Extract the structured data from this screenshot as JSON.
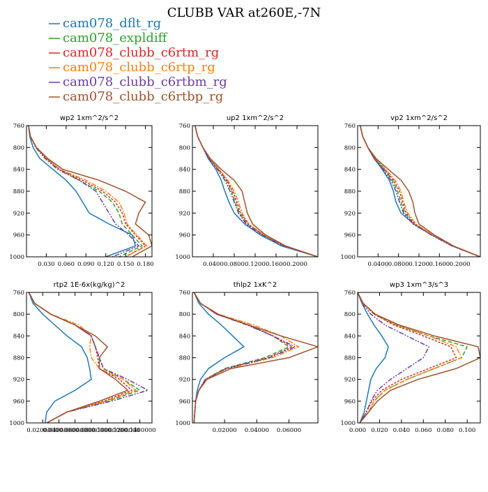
{
  "title": "CLUBB VAR at260E,-7N",
  "colors": {
    "dflt": "#1f77b4",
    "expldiff": "#2ca02c",
    "c6rtm": "#d62728",
    "c6rtp": "#ff7f0e",
    "c6rtbm": "#6a3d9a",
    "c6rtbp": "#a0522d"
  },
  "legend": [
    {
      "key": "dflt",
      "label": "cam078_dflt_rg",
      "dash": ""
    },
    {
      "key": "expldiff",
      "label": "cam078_expldiff",
      "dash": "6,3"
    },
    {
      "key": "c6rtm",
      "label": "cam078_clubb_c6rtm_rg",
      "dash": "3,2"
    },
    {
      "key": "c6rtp",
      "label": "cam078_clubb_c6rtp_rg",
      "dash": "7,2,2,2"
    },
    {
      "key": "c6rtbm",
      "label": "cam078_clubb_c6rtbm_rg",
      "dash": "7,2,2,2,2,2"
    },
    {
      "key": "c6rtbp",
      "label": "cam078_clubb_c6rtbp_rg",
      "dash": ""
    }
  ],
  "chart_data": [
    {
      "type": "line",
      "title": "wp2  1xm^2/s^2",
      "xlim": [
        0.0,
        0.19
      ],
      "ylim": [
        760,
        1000
      ],
      "y_inverted": true,
      "xticks": [
        0.03,
        0.06,
        0.09,
        0.12,
        0.15,
        0.18
      ],
      "xtick_labels": [
        "0.030",
        "0.060",
        "0.090",
        "0.120",
        "0.150",
        "0.180"
      ],
      "yticks": [
        760,
        800,
        840,
        880,
        920,
        960,
        1000
      ],
      "levels": [
        760,
        780,
        800,
        820,
        840,
        860,
        880,
        900,
        920,
        940,
        960,
        980,
        1000
      ],
      "series": [
        {
          "key": "dflt",
          "values": [
            0.003,
            0.005,
            0.01,
            0.02,
            0.04,
            0.06,
            0.075,
            0.085,
            0.095,
            0.125,
            0.16,
            0.165,
            0.12
          ]
        },
        {
          "key": "expldiff",
          "values": [
            0.003,
            0.006,
            0.015,
            0.03,
            0.05,
            0.08,
            0.11,
            0.13,
            0.14,
            0.145,
            0.16,
            0.175,
            0.14
          ]
        },
        {
          "key": "c6rtm",
          "values": [
            0.003,
            0.006,
            0.015,
            0.03,
            0.05,
            0.085,
            0.115,
            0.135,
            0.145,
            0.15,
            0.165,
            0.18,
            0.15
          ]
        },
        {
          "key": "c6rtp",
          "values": [
            0.003,
            0.006,
            0.015,
            0.03,
            0.05,
            0.09,
            0.12,
            0.14,
            0.148,
            0.152,
            0.167,
            0.182,
            0.15
          ]
        },
        {
          "key": "c6rtbm",
          "values": [
            0.003,
            0.006,
            0.014,
            0.028,
            0.047,
            0.08,
            0.105,
            0.115,
            0.125,
            0.135,
            0.155,
            0.17,
            0.13
          ]
        },
        {
          "key": "c6rtbp",
          "values": [
            0.003,
            0.006,
            0.015,
            0.032,
            0.055,
            0.11,
            0.15,
            0.18,
            0.17,
            0.165,
            0.185,
            0.19,
            0.16
          ]
        }
      ]
    },
    {
      "type": "line",
      "title": "up2  1xm^2/s^2",
      "xlim": [
        0.0,
        0.24
      ],
      "ylim": [
        760,
        1000
      ],
      "y_inverted": true,
      "xticks": [
        0.04,
        0.08,
        0.12,
        0.16,
        0.2
      ],
      "xtick_labels": [
        "0.0400",
        "0.0800",
        "0.1200",
        "0.1600",
        "0.2000"
      ],
      "yticks": [
        760,
        800,
        840,
        880,
        920,
        960,
        1000
      ],
      "levels": [
        760,
        780,
        800,
        820,
        840,
        860,
        880,
        900,
        920,
        940,
        960,
        980,
        1000
      ],
      "series": [
        {
          "key": "dflt",
          "values": [
            0.005,
            0.01,
            0.02,
            0.03,
            0.045,
            0.055,
            0.062,
            0.07,
            0.08,
            0.1,
            0.13,
            0.17,
            0.24
          ]
        },
        {
          "key": "expldiff",
          "values": [
            0.005,
            0.01,
            0.02,
            0.032,
            0.05,
            0.065,
            0.075,
            0.082,
            0.09,
            0.105,
            0.135,
            0.175,
            0.24
          ]
        },
        {
          "key": "c6rtm",
          "values": [
            0.005,
            0.01,
            0.02,
            0.032,
            0.05,
            0.066,
            0.077,
            0.085,
            0.092,
            0.107,
            0.136,
            0.176,
            0.24
          ]
        },
        {
          "key": "c6rtp",
          "values": [
            0.005,
            0.01,
            0.02,
            0.033,
            0.051,
            0.068,
            0.08,
            0.088,
            0.095,
            0.108,
            0.137,
            0.177,
            0.24
          ]
        },
        {
          "key": "c6rtbm",
          "values": [
            0.005,
            0.01,
            0.02,
            0.031,
            0.048,
            0.062,
            0.072,
            0.08,
            0.088,
            0.103,
            0.133,
            0.174,
            0.24
          ]
        },
        {
          "key": "c6rtbp",
          "values": [
            0.005,
            0.01,
            0.02,
            0.034,
            0.055,
            0.08,
            0.095,
            0.1,
            0.105,
            0.115,
            0.14,
            0.178,
            0.24
          ]
        }
      ]
    },
    {
      "type": "line",
      "title": "vp2  1xm^2/s^2",
      "xlim": [
        0.0,
        0.24
      ],
      "ylim": [
        760,
        1000
      ],
      "y_inverted": true,
      "xticks": [
        0.04,
        0.08,
        0.12,
        0.16,
        0.2
      ],
      "xtick_labels": [
        "0.0400",
        "0.0800",
        "0.1200",
        "0.1600",
        "0.2000"
      ],
      "yticks": [
        760,
        800,
        840,
        880,
        920,
        960,
        1000
      ],
      "levels": [
        760,
        780,
        800,
        820,
        840,
        860,
        880,
        900,
        920,
        940,
        960,
        980,
        1000
      ],
      "series": [
        {
          "key": "dflt",
          "values": [
            0.005,
            0.01,
            0.02,
            0.032,
            0.048,
            0.062,
            0.07,
            0.075,
            0.085,
            0.11,
            0.145,
            0.185,
            0.24
          ]
        },
        {
          "key": "expldiff",
          "values": [
            0.005,
            0.01,
            0.02,
            0.033,
            0.052,
            0.068,
            0.078,
            0.085,
            0.092,
            0.11,
            0.145,
            0.185,
            0.24
          ]
        },
        {
          "key": "c6rtm",
          "values": [
            0.005,
            0.01,
            0.02,
            0.034,
            0.053,
            0.07,
            0.082,
            0.088,
            0.095,
            0.112,
            0.146,
            0.186,
            0.24
          ]
        },
        {
          "key": "c6rtp",
          "values": [
            0.005,
            0.01,
            0.02,
            0.035,
            0.055,
            0.073,
            0.085,
            0.09,
            0.098,
            0.114,
            0.147,
            0.186,
            0.24
          ]
        },
        {
          "key": "c6rtbm",
          "values": [
            0.005,
            0.01,
            0.02,
            0.032,
            0.05,
            0.065,
            0.075,
            0.082,
            0.09,
            0.108,
            0.144,
            0.184,
            0.24
          ]
        },
        {
          "key": "c6rtbp",
          "values": [
            0.005,
            0.01,
            0.02,
            0.036,
            0.06,
            0.085,
            0.1,
            0.108,
            0.112,
            0.12,
            0.15,
            0.187,
            0.24
          ]
        }
      ]
    },
    {
      "type": "line",
      "title": "rtp2  1E-6x(kg/kg)^2",
      "xlim": [
        0.0,
        0.155
      ],
      "ylim": [
        760,
        1000
      ],
      "y_inverted": true,
      "xticks": [
        0.02,
        0.04,
        0.06,
        0.08,
        0.1,
        0.12,
        0.14
      ],
      "xtick_labels": [
        "0.0200000",
        "0.0400000",
        "0.0600000",
        "0.0800000",
        "0.1000000",
        "0.1200000",
        "0.1400000"
      ],
      "yticks": [
        760,
        800,
        840,
        880,
        920,
        960,
        1000
      ],
      "levels": [
        760,
        780,
        800,
        820,
        840,
        860,
        880,
        900,
        920,
        940,
        960,
        980,
        1000
      ],
      "series": [
        {
          "key": "dflt",
          "values": [
            0.003,
            0.008,
            0.02,
            0.035,
            0.05,
            0.068,
            0.075,
            0.078,
            0.08,
            0.06,
            0.035,
            0.025,
            0.023
          ]
        },
        {
          "key": "expldiff",
          "values": [
            0.003,
            0.01,
            0.03,
            0.06,
            0.08,
            0.085,
            0.09,
            0.095,
            0.12,
            0.14,
            0.1,
            0.05,
            0.025
          ]
        },
        {
          "key": "c6rtm",
          "values": [
            0.003,
            0.01,
            0.03,
            0.06,
            0.08,
            0.085,
            0.088,
            0.09,
            0.115,
            0.13,
            0.095,
            0.05,
            0.025
          ]
        },
        {
          "key": "c6rtp",
          "values": [
            0.003,
            0.01,
            0.03,
            0.065,
            0.08,
            0.078,
            0.08,
            0.09,
            0.12,
            0.135,
            0.098,
            0.05,
            0.025
          ]
        },
        {
          "key": "c6rtbm",
          "values": [
            0.003,
            0.01,
            0.03,
            0.06,
            0.08,
            0.085,
            0.09,
            0.095,
            0.125,
            0.15,
            0.105,
            0.05,
            0.025
          ]
        },
        {
          "key": "c6rtbp",
          "values": [
            0.003,
            0.01,
            0.03,
            0.06,
            0.085,
            0.1,
            0.09,
            0.09,
            0.11,
            0.125,
            0.09,
            0.05,
            0.025
          ]
        }
      ]
    },
    {
      "type": "line",
      "title": "thlp2  1xK^2",
      "xlim": [
        0.0,
        0.078
      ],
      "ylim": [
        760,
        1000
      ],
      "y_inverted": true,
      "xticks": [
        0.02,
        0.04,
        0.06
      ],
      "xtick_labels": [
        "0.02000",
        "0.04000",
        "0.06000"
      ],
      "yticks": [
        760,
        800,
        840,
        880,
        920,
        960,
        1000
      ],
      "levels": [
        760,
        780,
        800,
        820,
        840,
        860,
        880,
        900,
        920,
        940,
        960,
        980,
        1000
      ],
      "series": [
        {
          "key": "dflt",
          "values": [
            0.001,
            0.004,
            0.01,
            0.018,
            0.025,
            0.032,
            0.02,
            0.01,
            0.005,
            0.003,
            0.002,
            0.0015,
            0.001
          ]
        },
        {
          "key": "expldiff",
          "values": [
            0.001,
            0.005,
            0.015,
            0.035,
            0.05,
            0.06,
            0.045,
            0.02,
            0.008,
            0.004,
            0.002,
            0.0015,
            0.001
          ]
        },
        {
          "key": "c6rtm",
          "values": [
            0.001,
            0.005,
            0.015,
            0.035,
            0.05,
            0.062,
            0.047,
            0.021,
            0.008,
            0.004,
            0.002,
            0.0015,
            0.001
          ]
        },
        {
          "key": "c6rtp",
          "values": [
            0.001,
            0.005,
            0.016,
            0.038,
            0.055,
            0.066,
            0.05,
            0.022,
            0.008,
            0.004,
            0.002,
            0.0015,
            0.001
          ]
        },
        {
          "key": "c6rtbm",
          "values": [
            0.001,
            0.005,
            0.015,
            0.034,
            0.05,
            0.064,
            0.048,
            0.021,
            0.008,
            0.004,
            0.002,
            0.0015,
            0.001
          ]
        },
        {
          "key": "c6rtbp",
          "values": [
            0.001,
            0.005,
            0.016,
            0.035,
            0.055,
            0.078,
            0.06,
            0.024,
            0.009,
            0.004,
            0.002,
            0.0015,
            0.001
          ]
        }
      ]
    },
    {
      "type": "line",
      "title": "wp3  1xm^3/s^3",
      "xlim": [
        0.0,
        0.112
      ],
      "ylim": [
        760,
        1000
      ],
      "y_inverted": true,
      "xticks": [
        0.0,
        0.02,
        0.04,
        0.06,
        0.08,
        0.1
      ],
      "xtick_labels": [
        "0.000",
        "0.020",
        "0.040",
        "0.060",
        "0.080",
        "0.100"
      ],
      "yticks": [
        760,
        800,
        840,
        880,
        920,
        960,
        1000
      ],
      "levels": [
        760,
        780,
        800,
        820,
        840,
        860,
        880,
        900,
        920,
        940,
        960,
        980,
        1000
      ],
      "series": [
        {
          "key": "dflt",
          "values": [
            0.0,
            0.004,
            0.009,
            0.015,
            0.022,
            0.028,
            0.025,
            0.017,
            0.012,
            0.01,
            0.008,
            0.006,
            0.002
          ]
        },
        {
          "key": "expldiff",
          "values": [
            0.0,
            0.005,
            0.015,
            0.035,
            0.065,
            0.1,
            0.095,
            0.07,
            0.045,
            0.025,
            0.015,
            0.01,
            0.002
          ]
        },
        {
          "key": "c6rtm",
          "values": [
            0.0,
            0.005,
            0.015,
            0.033,
            0.06,
            0.085,
            0.09,
            0.065,
            0.04,
            0.022,
            0.013,
            0.008,
            0.002
          ]
        },
        {
          "key": "c6rtp",
          "values": [
            0.0,
            0.005,
            0.016,
            0.036,
            0.065,
            0.09,
            0.095,
            0.07,
            0.045,
            0.025,
            0.015,
            0.01,
            0.002
          ]
        },
        {
          "key": "c6rtbm",
          "values": [
            0.0,
            0.004,
            0.012,
            0.025,
            0.045,
            0.065,
            0.06,
            0.045,
            0.03,
            0.018,
            0.012,
            0.008,
            0.002
          ]
        },
        {
          "key": "c6rtbp",
          "values": [
            0.0,
            0.005,
            0.016,
            0.038,
            0.07,
            0.11,
            0.112,
            0.09,
            0.055,
            0.03,
            0.018,
            0.01,
            0.002
          ]
        }
      ]
    }
  ]
}
